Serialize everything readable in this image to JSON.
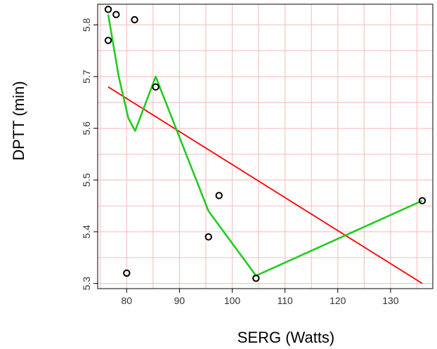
{
  "chart_data": {
    "type": "scatter",
    "title": "",
    "xlabel": "SERG (Watts)",
    "ylabel": "DPTT (min)",
    "xlim": [
      74.5,
      138
    ],
    "ylim": [
      5.29,
      5.84
    ],
    "x_ticks": [
      80,
      90,
      100,
      110,
      120,
      130
    ],
    "y_ticks": [
      5.3,
      5.4,
      5.5,
      5.6,
      5.7,
      5.8
    ],
    "grid": true,
    "colors": {
      "grid": "#f7c4c4",
      "points": "#000000",
      "regression_line": "#ff0000",
      "smooth_line": "#22cc22"
    },
    "points": [
      {
        "x": 76.5,
        "y": 5.83
      },
      {
        "x": 78.0,
        "y": 5.82
      },
      {
        "x": 81.5,
        "y": 5.81
      },
      {
        "x": 76.5,
        "y": 5.77
      },
      {
        "x": 85.5,
        "y": 5.68
      },
      {
        "x": 97.5,
        "y": 5.47
      },
      {
        "x": 95.5,
        "y": 5.39
      },
      {
        "x": 80.0,
        "y": 5.32
      },
      {
        "x": 104.5,
        "y": 5.31
      },
      {
        "x": 136.0,
        "y": 5.46
      }
    ],
    "series": [
      {
        "type": "line",
        "color": "#ff0000",
        "x": [
          76.5,
          136.0
        ],
        "y": [
          5.68,
          5.3
        ]
      },
      {
        "type": "line",
        "color": "#22cc22",
        "x": [
          76.5,
          78.5,
          80.3,
          81.6,
          85.5,
          95.5,
          104.5,
          136.0
        ],
        "y": [
          5.82,
          5.7,
          5.62,
          5.595,
          5.7,
          5.44,
          5.315,
          5.46
        ]
      }
    ]
  }
}
